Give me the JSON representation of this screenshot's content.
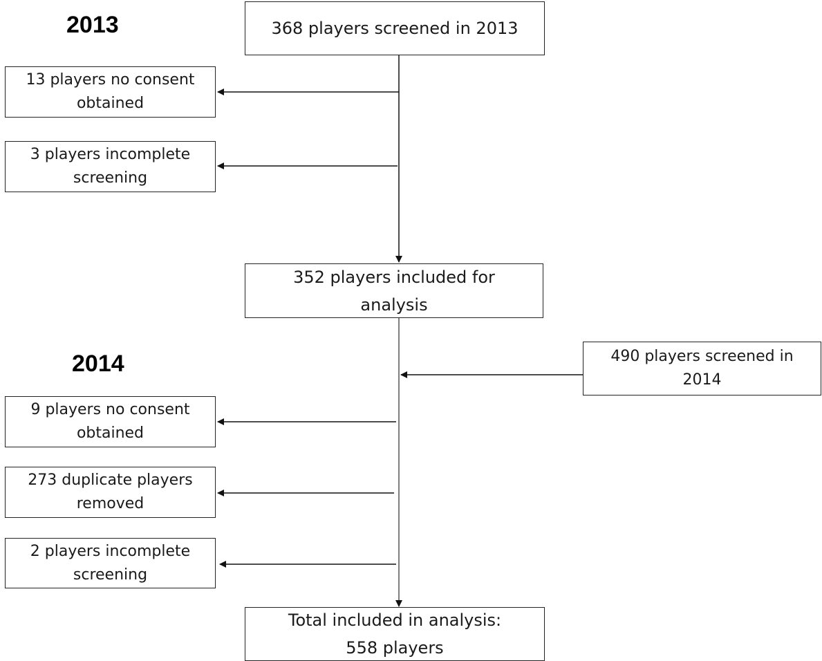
{
  "years": {
    "y2013": "2013",
    "y2014": "2014"
  },
  "boxes": {
    "screened_2013": "368 players screened  in 2013",
    "no_consent_2013": "13 players no consent\nobtained",
    "incomplete_2013": "3 players incomplete\nscreening",
    "included_2013": "352 players included for\nanalysis",
    "screened_2014": "490 players screened in\n2014",
    "no_consent_2014": "9 players no consent\nobtained",
    "duplicates_2014": "273 duplicate players\nremoved",
    "incomplete_2014": "2 players incomplete\nscreening",
    "total": "Total included in analysis:\n558 players"
  }
}
